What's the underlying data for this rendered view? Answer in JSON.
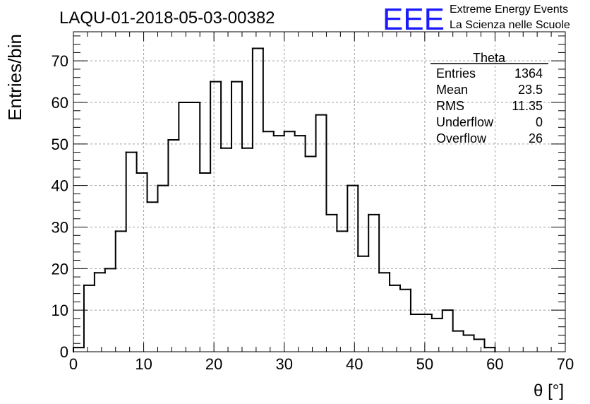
{
  "chart_data": {
    "type": "bar",
    "title": "LAQU-01-2018-05-03-00382",
    "xlabel": "θ [°]",
    "ylabel": "Entries/bin",
    "xlim": [
      0,
      70
    ],
    "ylim": [
      0,
      77
    ],
    "grid": true,
    "bin_width": 1.5,
    "x_ticks": [
      "0",
      "10",
      "20",
      "30",
      "40",
      "50",
      "60",
      "70"
    ],
    "y_ticks": [
      "0",
      "10",
      "20",
      "30",
      "40",
      "50",
      "60",
      "70"
    ],
    "values": [
      1,
      16,
      19,
      20,
      29,
      48,
      43,
      36,
      40,
      51,
      60,
      60,
      43,
      65,
      49,
      65,
      49,
      73,
      53,
      52,
      53,
      52,
      47,
      57,
      33,
      29,
      40,
      23,
      33,
      19,
      16,
      15,
      9,
      9,
      8,
      10,
      5,
      4,
      3,
      1,
      0,
      0,
      0,
      0,
      0,
      0,
      0
    ]
  },
  "stats": {
    "title": "Theta",
    "rows": [
      {
        "label": "Entries",
        "value": "1364"
      },
      {
        "label": "Mean",
        "value": "23.5"
      },
      {
        "label": "RMS",
        "value": "11.35"
      },
      {
        "label": "Underflow",
        "value": "0"
      },
      {
        "label": "Overflow",
        "value": "26"
      }
    ]
  },
  "logo": {
    "mark": "EEE",
    "line1": "Extreme Energy Events",
    "line2": "La Scienza nelle Scuole",
    "color": "#1a1aff"
  }
}
